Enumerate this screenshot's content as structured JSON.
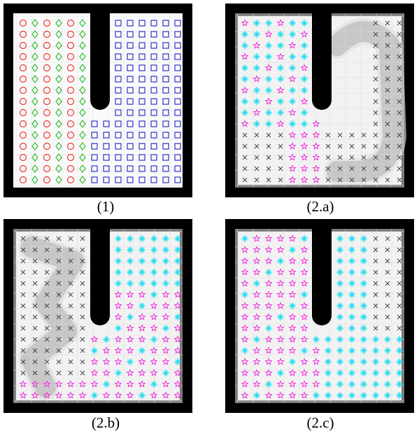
{
  "panels": [
    {
      "label": "(1)"
    },
    {
      "label": "(2.a)"
    },
    {
      "label": "(2.b)"
    },
    {
      "label": "(2.c)"
    }
  ]
}
